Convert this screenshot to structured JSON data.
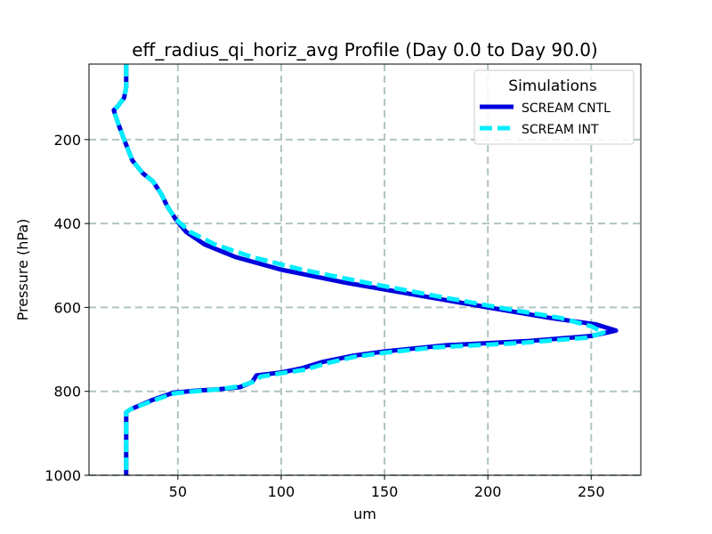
{
  "chart_data": {
    "type": "line",
    "title": "eff_radius_qi_horiz_avg Profile (Day 0.0 to Day 90.0)",
    "xlabel": "um",
    "ylabel": "Pressure (hPa)",
    "xlim": [
      7,
      274
    ],
    "ylim": [
      1000,
      20
    ],
    "y_inverted": true,
    "grid": true,
    "xticks": [
      50,
      100,
      150,
      200,
      250
    ],
    "yticks": [
      200,
      400,
      600,
      800,
      1000
    ],
    "legend": {
      "title": "Simulations",
      "position": "top-right"
    },
    "series": [
      {
        "name": "SCREAM CNTL",
        "color": "#0000dd",
        "style": "solid",
        "x": [
          25,
          25,
          24,
          21,
          19,
          21,
          24,
          28,
          33,
          38,
          42,
          45,
          49,
          54,
          63,
          78,
          100,
          130,
          165,
          200,
          230,
          252,
          262,
          250,
          220,
          180,
          150,
          135,
          120,
          110,
          100,
          88,
          86,
          80,
          70,
          60,
          48,
          38,
          27,
          25,
          25,
          25,
          25
        ],
        "y": [
          20,
          75,
          100,
          120,
          130,
          160,
          200,
          250,
          280,
          300,
          330,
          360,
          390,
          420,
          450,
          480,
          510,
          540,
          570,
          600,
          625,
          640,
          655,
          668,
          680,
          690,
          705,
          715,
          730,
          745,
          755,
          762,
          778,
          790,
          795,
          798,
          803,
          820,
          843,
          850,
          900,
          960,
          1000
        ]
      },
      {
        "name": "SCREAM INT",
        "color": "#00eeff",
        "style": "dashed",
        "x": [
          25,
          25,
          24,
          21,
          19,
          21,
          24,
          28,
          33,
          38,
          42,
          45,
          49,
          56,
          68,
          86,
          110,
          140,
          172,
          205,
          235,
          250,
          256,
          248,
          215,
          175,
          150,
          135,
          122,
          112,
          100,
          90,
          88,
          80,
          70,
          58,
          48,
          38,
          27,
          25,
          25,
          25,
          25
        ],
        "y": [
          20,
          75,
          100,
          120,
          130,
          160,
          200,
          250,
          280,
          300,
          330,
          360,
          390,
          420,
          450,
          480,
          510,
          540,
          570,
          600,
          625,
          645,
          660,
          672,
          685,
          695,
          708,
          718,
          733,
          748,
          757,
          765,
          775,
          788,
          795,
          800,
          805,
          822,
          843,
          850,
          900,
          960,
          1000
        ]
      }
    ]
  }
}
